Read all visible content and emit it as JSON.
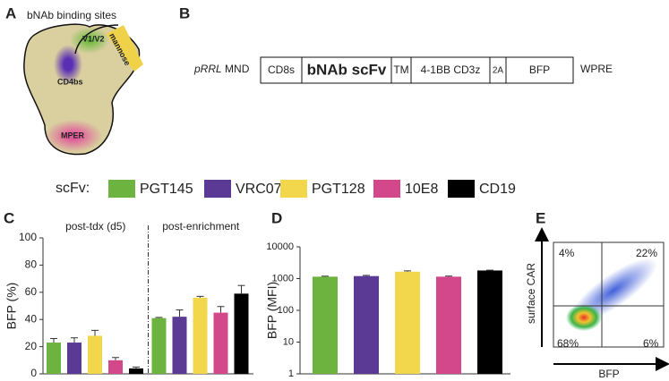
{
  "panel_labels": [
    "A",
    "B",
    "C",
    "D",
    "E"
  ],
  "panel_a": {
    "title": "bNAb binding sites",
    "sites": [
      "V1/V2",
      "mannose",
      "CD4bs",
      "MPER"
    ]
  },
  "panel_b": {
    "vector": "pRRL",
    "promoter": "MND",
    "segments": [
      "CD8s",
      "bNAb scFv",
      "TM",
      "4-1BB CD3z",
      "2A",
      "BFP"
    ],
    "tail": "WPRE"
  },
  "legend": {
    "title": "scFv:"
  },
  "chart_data": [
    {
      "type": "bar",
      "y_label": "BFP (%)",
      "categories": [
        "post-tdx (d5)",
        "post-enrichment"
      ],
      "series": [
        {
          "name": "PGT145",
          "color": "#6db33f",
          "values": [
            23,
            41
          ],
          "errors": [
            3,
            0.5
          ]
        },
        {
          "name": "VRC07",
          "color": "#5b3a96",
          "values": [
            23,
            42
          ],
          "errors": [
            3.5,
            5
          ]
        },
        {
          "name": "PGT128",
          "color": "#f2d64b",
          "values": [
            28,
            56
          ],
          "errors": [
            4,
            1
          ]
        },
        {
          "name": "10E8",
          "color": "#d3478b",
          "values": [
            10,
            45
          ],
          "errors": [
            2,
            4.5
          ]
        },
        {
          "name": "CD19",
          "color": "#000000",
          "values": [
            4,
            59
          ],
          "errors": [
            1,
            6
          ]
        }
      ],
      "ylim": [
        0,
        100
      ],
      "yticks": [
        0,
        20,
        40,
        60,
        80,
        100
      ]
    },
    {
      "type": "bar",
      "y_label": "BFP (MFI)",
      "log_scale": true,
      "categories": [
        null,
        null,
        null,
        null,
        null
      ],
      "values": [
        1150,
        1200,
        1650,
        1150,
        1800
      ],
      "errors": [
        40,
        60,
        100,
        50,
        40
      ],
      "colors": [
        "#6db33f",
        "#5b3a96",
        "#f2d64b",
        "#d3478b",
        "#000000"
      ],
      "ylim": [
        1,
        10000
      ],
      "yticks": [
        1,
        10,
        100,
        1000,
        10000
      ]
    }
  ],
  "panel_e": {
    "x_label": "BFP",
    "y_label": "surface CAR",
    "quadrants": [
      "4%",
      "22%",
      "68%",
      "6%"
    ]
  }
}
